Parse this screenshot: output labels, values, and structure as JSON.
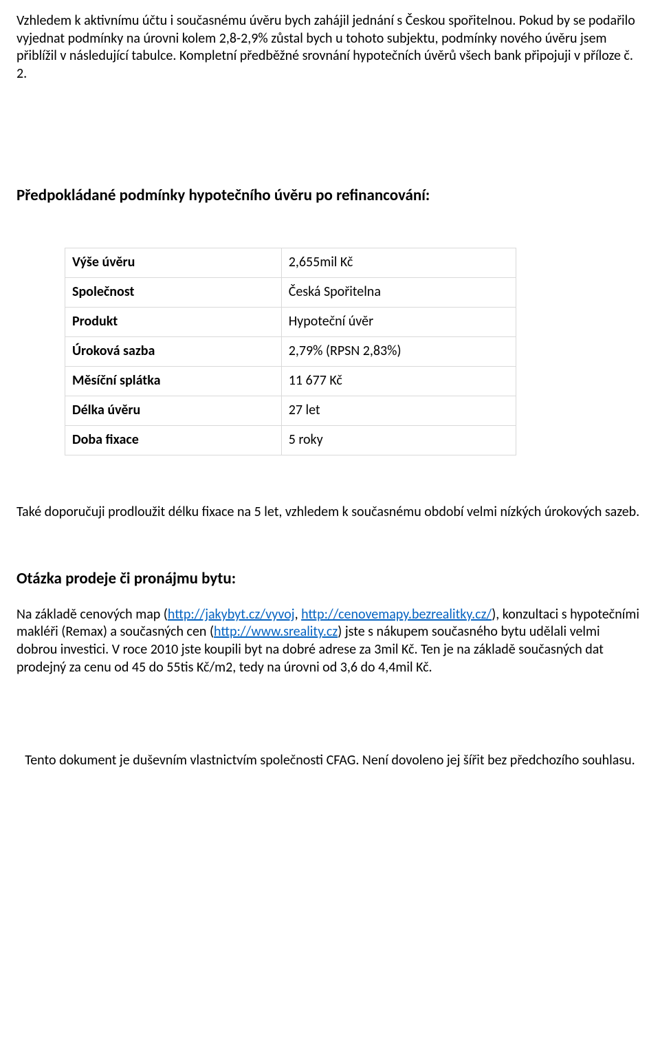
{
  "intro_paragraph_parts": {
    "p1": "Vzhledem k aktivnímu účtu i současnému úvěru bych zahájil jednání s Českou spořitelnou. Pokud by se podařilo vyjednat podmínky na úrovni kolem 2,8-2,9% zůstal bych u tohoto subjektu, podmínky nového úvěru jsem přiblížil v následující tabulce. Kompletní předběžné srovnání hypotečních úvěrů všech bank připojuji v příloze č. 2."
  },
  "heading1": "Předpokládané podmínky hypotečního úvěru po refinancování:",
  "table": {
    "rows": [
      {
        "label": "Výše úvěru",
        "value": "2,655mil Kč"
      },
      {
        "label": "Společnost",
        "value": "Česká Spořitelna"
      },
      {
        "label": "Produkt",
        "value": "Hypoteční úvěr"
      },
      {
        "label": "Úroková sazba",
        "value": "2,79% (RPSN 2,83%)"
      },
      {
        "label": "Měsíční splátka",
        "value": "11 677 Kč"
      },
      {
        "label": "Délka úvěru",
        "value": "27 let"
      },
      {
        "label": "Doba fixace",
        "value": "5 roky"
      }
    ],
    "border_color": "#d9d9d9"
  },
  "recommend_para": "Také doporučuji prodloužit délku fixace na 5 let, vzhledem k současnému období velmi nízkých úrokových sazeb.",
  "heading2": "Otázka prodeje či pronájmu bytu:",
  "sale_para": {
    "pre_link1": "Na základě cenových map (",
    "link1_text": "http://jakybyt.cz/vyvoj",
    "between_links_sep": ", ",
    "link2_text": "http://cenovemapy.bezrealitky.cz/",
    "after_link2": "), konzultaci s hypotečními makléři (Remax) a současných cen (",
    "link3_text": "http://www.sreality.cz",
    "after_link3": ") jste s nákupem současného bytu udělali velmi dobrou investici. V roce 2010 jste koupili byt na dobré adrese za 3mil Kč. Ten je na základě současných dat prodejný za cenu od 45 do 55tis Kč/m2, tedy na úrovni od 3,6 do 4,4mil Kč."
  },
  "footer": "Tento dokument je duševním vlastnictvím společnosti CFAG. Není dovoleno jej šířit bez předchozího souhlasu.",
  "colors": {
    "link": "#0563c1",
    "text": "#000000",
    "background": "#ffffff"
  }
}
